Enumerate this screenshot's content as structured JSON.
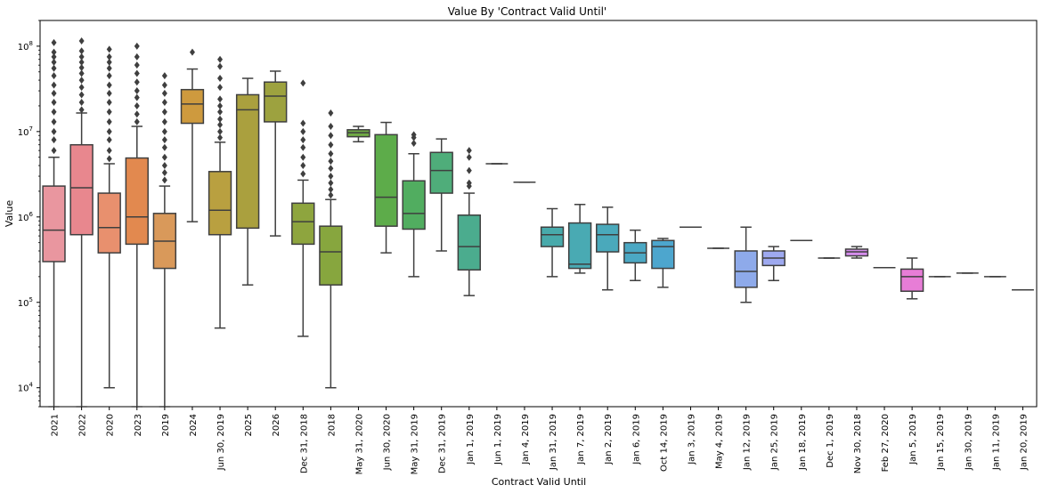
{
  "chart_data": {
    "type": "box",
    "title": "Value By 'Contract Valid Until'",
    "xlabel": "Contract Valid Until",
    "ylabel": "Value",
    "yscale": "log",
    "ylim": [
      6000,
      200000000
    ],
    "y_ticks": [
      {
        "value": 10000,
        "base": "10",
        "exp": "4"
      },
      {
        "value": 100000,
        "base": "10",
        "exp": "5"
      },
      {
        "value": 1000000,
        "base": "10",
        "exp": "6"
      },
      {
        "value": 10000000,
        "base": "10",
        "exp": "7"
      },
      {
        "value": 100000000,
        "base": "10",
        "exp": "8"
      }
    ],
    "grid": false,
    "categories": [
      {
        "label": "2021",
        "color": "#E9969F",
        "q1": 300000,
        "median": 700000,
        "q3": 2300000,
        "wlow": 6000,
        "whigh": 5000000,
        "outliers": [
          6000000,
          8000000,
          10000000,
          13000000,
          17000000,
          22000000,
          28000000,
          35000000,
          45000000,
          55000000,
          65000000,
          75000000,
          85000000,
          110000000
        ]
      },
      {
        "label": "2022",
        "color": "#E8878E",
        "q1": 620000,
        "median": 2200000,
        "q3": 7000000,
        "wlow": 6000,
        "whigh": 16500000,
        "outliers": [
          18000000,
          22000000,
          27000000,
          33000000,
          40000000,
          48000000,
          56000000,
          65000000,
          75000000,
          88000000,
          115000000
        ]
      },
      {
        "label": "2020",
        "color": "#E8906E",
        "q1": 380000,
        "median": 750000,
        "q3": 1900000,
        "wlow": 10000,
        "whigh": 4200000,
        "outliers": [
          4800000,
          6000000,
          8000000,
          10000000,
          13000000,
          17000000,
          22000000,
          28000000,
          35000000,
          45000000,
          55000000,
          65000000,
          75000000,
          92000000
        ]
      },
      {
        "label": "2023",
        "color": "#E2894F",
        "q1": 480000,
        "median": 1000000,
        "q3": 4900000,
        "wlow": 6000,
        "whigh": 11500000,
        "outliers": [
          13000000,
          16000000,
          20000000,
          25000000,
          30000000,
          38000000,
          48000000,
          60000000,
          75000000,
          100000000
        ]
      },
      {
        "label": "2019",
        "color": "#D9995A",
        "q1": 250000,
        "median": 520000,
        "q3": 1100000,
        "wlow": 6000,
        "whigh": 2300000,
        "outliers": [
          2700000,
          3300000,
          4000000,
          5000000,
          6500000,
          8000000,
          10000000,
          13000000,
          17000000,
          22000000,
          28000000,
          35000000,
          45000000
        ]
      },
      {
        "label": "2024",
        "color": "#CE9A3E",
        "q1": 12500000,
        "median": 21000000,
        "q3": 31000000,
        "wlow": 880000,
        "whigh": 54000000,
        "outliers": [
          85000000
        ]
      },
      {
        "label": "Jun 30, 2019",
        "color": "#B9A040",
        "q1": 620000,
        "median": 1200000,
        "q3": 3400000,
        "wlow": 50000,
        "whigh": 7500000,
        "outliers": [
          8500000,
          10000000,
          12000000,
          14000000,
          17000000,
          20000000,
          24000000,
          33000000,
          42000000,
          58000000,
          70000000
        ]
      },
      {
        "label": "2025",
        "color": "#AAA03E",
        "q1": 740000,
        "median": 18000000,
        "q3": 27000000,
        "wlow": 160000,
        "whigh": 42000000,
        "outliers": []
      },
      {
        "label": "2026",
        "color": "#9DA23F",
        "q1": 13000000,
        "median": 26000000,
        "q3": 38000000,
        "wlow": 600000,
        "whigh": 51000000,
        "outliers": []
      },
      {
        "label": "Dec 31, 2018",
        "color": "#8EA53E",
        "q1": 480000,
        "median": 880000,
        "q3": 1450000,
        "wlow": 40000,
        "whigh": 2700000,
        "outliers": [
          3200000,
          4000000,
          5000000,
          6500000,
          8000000,
          10000000,
          12500000,
          37000000
        ]
      },
      {
        "label": "2018",
        "color": "#87A63E",
        "q1": 160000,
        "median": 390000,
        "q3": 780000,
        "wlow": 10000,
        "whigh": 1600000,
        "outliers": [
          1800000,
          2100000,
          2500000,
          3000000,
          3700000,
          4500000,
          5500000,
          7000000,
          9000000,
          11500000,
          16500000
        ]
      },
      {
        "label": "May 31, 2020",
        "color": "#6FAA45",
        "q1": 8700000,
        "median": 9700000,
        "q3": 10500000,
        "wlow": 7600000,
        "whigh": 11500000,
        "outliers": []
      },
      {
        "label": "Jun 30, 2020",
        "color": "#5DAC4A",
        "q1": 780000,
        "median": 1700000,
        "q3": 9200000,
        "wlow": 380000,
        "whigh": 12800000,
        "outliers": []
      },
      {
        "label": "May 31, 2019",
        "color": "#51AD60",
        "q1": 720000,
        "median": 1100000,
        "q3": 2650000,
        "wlow": 200000,
        "whigh": 5500000,
        "outliers": [
          7300000,
          8500000,
          9200000
        ]
      },
      {
        "label": "Dec 31, 2019",
        "color": "#4FAD7A",
        "q1": 1900000,
        "median": 3500000,
        "q3": 5700000,
        "wlow": 400000,
        "whigh": 8200000,
        "outliers": []
      },
      {
        "label": "Jan 1, 2019",
        "color": "#4BAC8E",
        "q1": 240000,
        "median": 450000,
        "q3": 1050000,
        "wlow": 120000,
        "whigh": 1900000,
        "outliers": [
          2300000,
          2500000,
          3500000,
          5000000,
          6000000
        ]
      },
      {
        "label": "Jun 1, 2019",
        "color": "#4AAC98",
        "q1": 4200000,
        "median": 4200000,
        "q3": 4200000,
        "wlow": 4200000,
        "whigh": 4200000,
        "outliers": []
      },
      {
        "label": "Jan 4, 2019",
        "color": "#49ABA2",
        "q1": 2550000,
        "median": 2550000,
        "q3": 2550000,
        "wlow": 2550000,
        "whigh": 2550000,
        "outliers": []
      },
      {
        "label": "Jan 31, 2019",
        "color": "#48AAAB",
        "q1": 450000,
        "median": 620000,
        "q3": 760000,
        "wlow": 200000,
        "whigh": 1250000,
        "outliers": []
      },
      {
        "label": "Jan 7, 2019",
        "color": "#49AAB3",
        "q1": 250000,
        "median": 280000,
        "q3": 850000,
        "wlow": 220000,
        "whigh": 1400000,
        "outliers": []
      },
      {
        "label": "Jan 2, 2019",
        "color": "#4AA9BB",
        "q1": 390000,
        "median": 620000,
        "q3": 820000,
        "wlow": 140000,
        "whigh": 1300000,
        "outliers": []
      },
      {
        "label": "Jan 6, 2019",
        "color": "#4BA8C4",
        "q1": 290000,
        "median": 380000,
        "q3": 500000,
        "wlow": 180000,
        "whigh": 700000,
        "outliers": []
      },
      {
        "label": "Oct 14, 2019",
        "color": "#4DA6CE",
        "q1": 250000,
        "median": 450000,
        "q3": 530000,
        "wlow": 150000,
        "whigh": 560000,
        "outliers": []
      },
      {
        "label": "Jan 3, 2019",
        "color": "#58A2D8",
        "q1": 760000,
        "median": 760000,
        "q3": 760000,
        "wlow": 760000,
        "whigh": 760000,
        "outliers": []
      },
      {
        "label": "May 4, 2019",
        "color": "#6C9FE0",
        "q1": 430000,
        "median": 430000,
        "q3": 430000,
        "wlow": 430000,
        "whigh": 430000,
        "outliers": []
      },
      {
        "label": "Jan 12, 2019",
        "color": "#8EAAEA",
        "q1": 150000,
        "median": 230000,
        "q3": 400000,
        "wlow": 100000,
        "whigh": 760000,
        "outliers": []
      },
      {
        "label": "Jan 25, 2019",
        "color": "#9EA9F0",
        "q1": 270000,
        "median": 330000,
        "q3": 400000,
        "wlow": 180000,
        "whigh": 450000,
        "outliers": []
      },
      {
        "label": "Jan 18, 2019",
        "color": "#AFA3F2",
        "q1": 530000,
        "median": 530000,
        "q3": 530000,
        "wlow": 530000,
        "whigh": 530000,
        "outliers": []
      },
      {
        "label": "Dec 1, 2019",
        "color": "#C29AF0",
        "q1": 330000,
        "median": 330000,
        "q3": 330000,
        "wlow": 330000,
        "whigh": 330000,
        "outliers": []
      },
      {
        "label": "Nov 30, 2018",
        "color": "#D58DEC",
        "q1": 350000,
        "median": 390000,
        "q3": 420000,
        "wlow": 330000,
        "whigh": 450000,
        "outliers": []
      },
      {
        "label": "Feb 27, 2020",
        "color": "#E080E3",
        "q1": 255000,
        "median": 255000,
        "q3": 255000,
        "wlow": 255000,
        "whigh": 255000,
        "outliers": []
      },
      {
        "label": "Jan 5, 2019",
        "color": "#E77DD6",
        "q1": 135000,
        "median": 200000,
        "q3": 245000,
        "wlow": 110000,
        "whigh": 330000,
        "outliers": []
      },
      {
        "label": "Jan 15, 2019",
        "color": "#E87FC8",
        "q1": 200000,
        "median": 200000,
        "q3": 200000,
        "wlow": 200000,
        "whigh": 200000,
        "outliers": []
      },
      {
        "label": "Jan 30, 2019",
        "color": "#E983BA",
        "q1": 220000,
        "median": 220000,
        "q3": 220000,
        "wlow": 220000,
        "whigh": 220000,
        "outliers": []
      },
      {
        "label": "Jan 11, 2019",
        "color": "#E987AE",
        "q1": 200000,
        "median": 200000,
        "q3": 200000,
        "wlow": 200000,
        "whigh": 200000,
        "outliers": []
      },
      {
        "label": "Jan 20, 2019",
        "color": "#E98BA4",
        "q1": 140000,
        "median": 140000,
        "q3": 140000,
        "wlow": 140000,
        "whigh": 140000,
        "outliers": []
      }
    ]
  }
}
